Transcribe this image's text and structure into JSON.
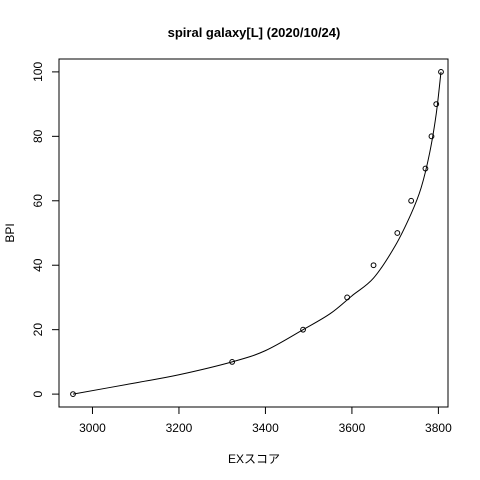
{
  "chart_data": {
    "type": "scatter",
    "title": "spiral galaxy[L] (2020/10/24)",
    "xlabel": "EXスコア",
    "ylabel": "BPI",
    "xlim": [
      2922.6,
      3822.2
    ],
    "ylim": [
      -4,
      104
    ],
    "x_ticks": [
      3000,
      3200,
      3400,
      3600,
      3800
    ],
    "y_ticks": [
      0,
      20,
      40,
      60,
      80,
      100
    ],
    "grid": false,
    "legend": "none",
    "points": [
      {
        "x": 2955,
        "y": 0
      },
      {
        "x": 3323,
        "y": 10
      },
      {
        "x": 3487,
        "y": 20
      },
      {
        "x": 3589,
        "y": 30
      },
      {
        "x": 3650,
        "y": 40
      },
      {
        "x": 3705,
        "y": 50
      },
      {
        "x": 3737,
        "y": 60
      },
      {
        "x": 3770,
        "y": 70
      },
      {
        "x": 3784,
        "y": 80
      },
      {
        "x": 3795,
        "y": 90
      },
      {
        "x": 3806,
        "y": 100
      }
    ],
    "curve": [
      {
        "x": 2955,
        "y": 0
      },
      {
        "x": 3100,
        "y": 3.5
      },
      {
        "x": 3200,
        "y": 6
      },
      {
        "x": 3323,
        "y": 10
      },
      {
        "x": 3400,
        "y": 13.5
      },
      {
        "x": 3487,
        "y": 20
      },
      {
        "x": 3550,
        "y": 25
      },
      {
        "x": 3600,
        "y": 30.5
      },
      {
        "x": 3650,
        "y": 36
      },
      {
        "x": 3700,
        "y": 46
      },
      {
        "x": 3737,
        "y": 56
      },
      {
        "x": 3760,
        "y": 64
      },
      {
        "x": 3780,
        "y": 75
      },
      {
        "x": 3795,
        "y": 87
      },
      {
        "x": 3806,
        "y": 100
      }
    ]
  }
}
